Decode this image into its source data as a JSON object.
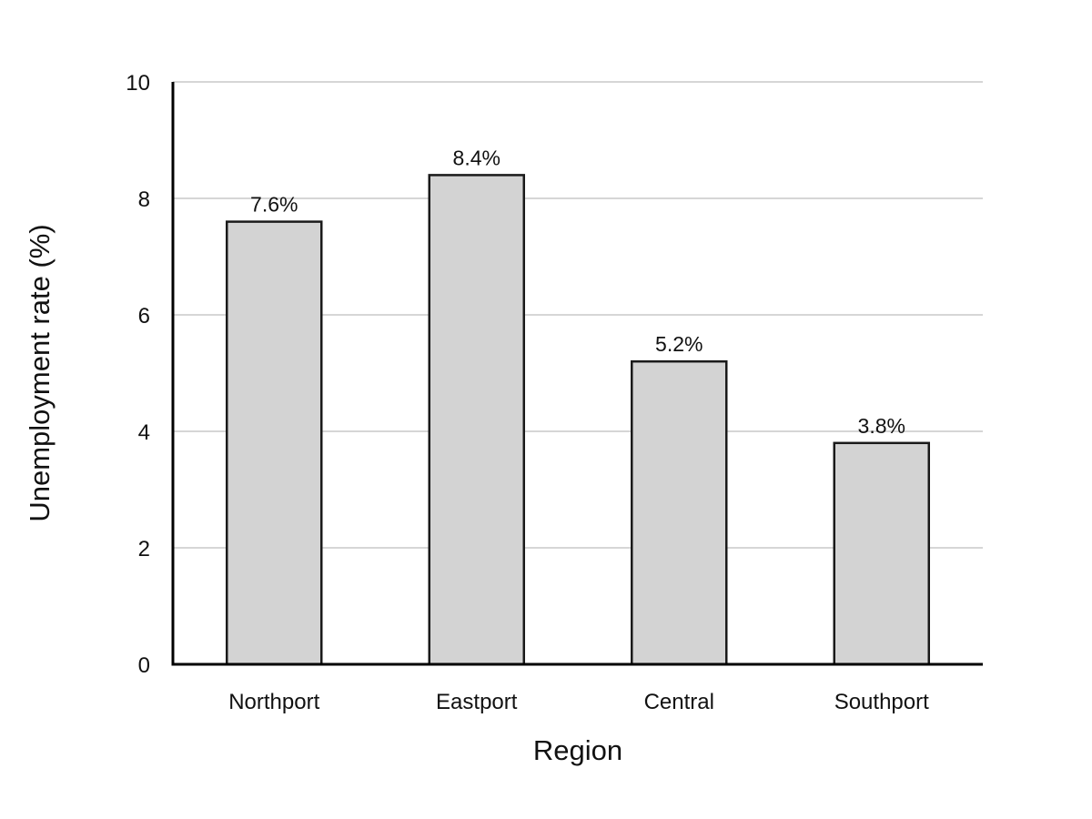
{
  "chart_data": {
    "type": "bar",
    "title": "",
    "xlabel": "Region",
    "ylabel": "Unemployment rate (%)",
    "categories": [
      "Northport",
      "Eastport",
      "Central",
      "Southport"
    ],
    "values": [
      7.6,
      8.4,
      5.2,
      3.8
    ],
    "data_labels": [
      "7.6%",
      "8.4%",
      "5.2%",
      "3.8%"
    ],
    "ylim": [
      0,
      10
    ],
    "yticks": [
      0,
      2,
      4,
      6,
      8,
      10
    ],
    "ytick_labels": [
      "0",
      "2",
      "4",
      "6",
      "8",
      "10"
    ],
    "grid": "horizontal",
    "legend": "none",
    "colors": {
      "bar_fill": "#d3d3d3",
      "bar_edge": "#1a1a1a",
      "grid": "#c8c8c8",
      "axis": "#000000"
    }
  }
}
